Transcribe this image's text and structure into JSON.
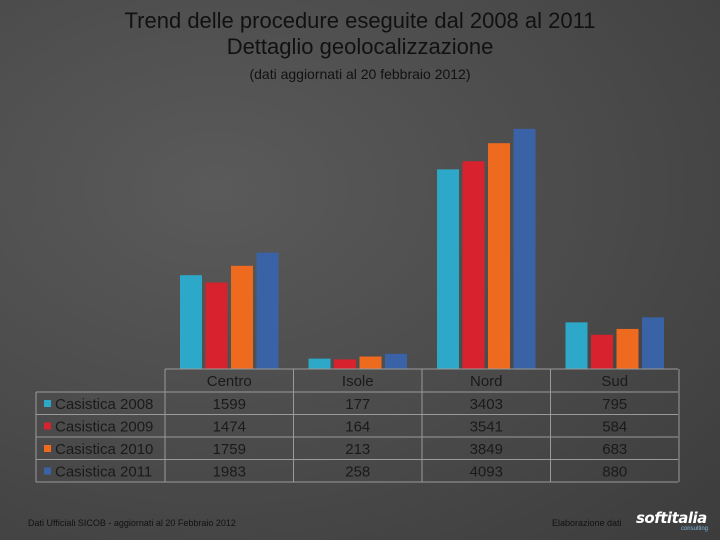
{
  "header": {
    "title_line1": "Trend delle procedure eseguite dal 2008 al 2011",
    "title_line2": "Dettaglio geolocalizzazione",
    "subtitle": "(dati aggiornati al 20 febbraio 2012)"
  },
  "chart_data": {
    "type": "bar",
    "categories": [
      "Centro",
      "Isole",
      "Nord",
      "Sud"
    ],
    "series": [
      {
        "name": "Casistica 2008",
        "values": [
          1599,
          177,
          3403,
          795
        ],
        "color": "#2ea8c8"
      },
      {
        "name": "Casistica 2009",
        "values": [
          1474,
          164,
          3541,
          584
        ],
        "color": "#d8222e"
      },
      {
        "name": "Casistica 2010",
        "values": [
          1759,
          213,
          3849,
          683
        ],
        "color": "#ee6a1e"
      },
      {
        "name": "Casistica 2011",
        "values": [
          1983,
          258,
          4093,
          880
        ],
        "color": "#3a62a6"
      }
    ],
    "value_labels": {
      "Centro": [
        "1599",
        "1474",
        "1759",
        "1983"
      ],
      "Isole": [
        "177",
        "164",
        "213",
        "258"
      ],
      "Nord": [
        "3403",
        "3541",
        "3849",
        "4093"
      ],
      "Sud": [
        "795",
        "584",
        "683",
        "880"
      ]
    },
    "ylim": [
      0,
      4500
    ],
    "grid": false,
    "legend": "data-table-left"
  },
  "footer": {
    "source": "Dati Ufficiali SICOB - aggiornati al 20 Febbraio 2012",
    "credit": "Elaborazione dati",
    "logo_text": "softitalia",
    "logo_sub": "consulting"
  }
}
